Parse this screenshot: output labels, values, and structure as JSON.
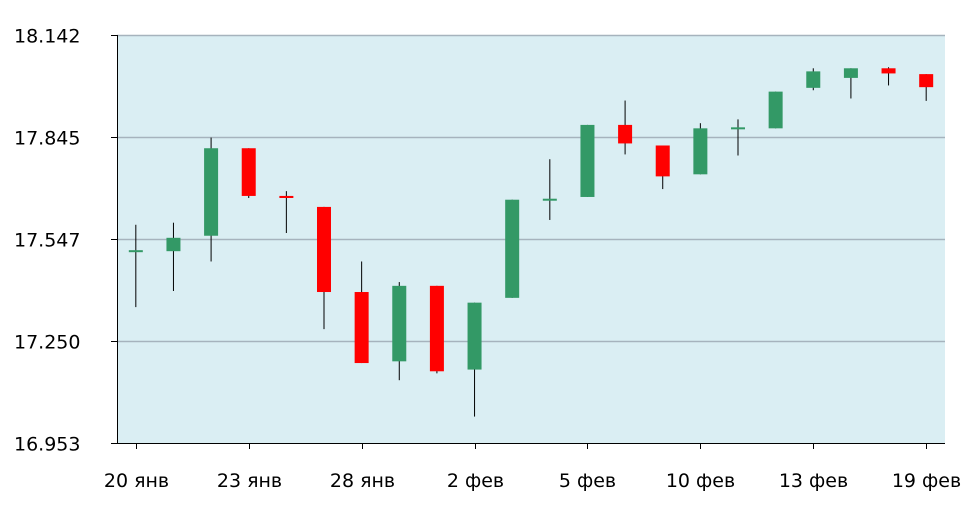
{
  "colors": {
    "plot_bg": "#daeef3",
    "grid": "#a6b3bd",
    "axis": "#000000",
    "up": "#339966",
    "down": "#ff0000",
    "wick": "#000000"
  },
  "chart_data": {
    "type": "candlestick",
    "title": "",
    "xlabel": "",
    "ylabel": "",
    "ylim": [
      16.953,
      18.142
    ],
    "y_ticks": [
      "18.142",
      "17.845",
      "17.547",
      "17.250",
      "16.953"
    ],
    "x_ticks": [
      {
        "index": 0,
        "label": "20 янв"
      },
      {
        "index": 3,
        "label": "23 янв"
      },
      {
        "index": 6,
        "label": "28 янв"
      },
      {
        "index": 9,
        "label": "2 фев"
      },
      {
        "index": 12,
        "label": "5 фев"
      },
      {
        "index": 15,
        "label": "10 фев"
      },
      {
        "index": 18,
        "label": "13 фев"
      },
      {
        "index": 21,
        "label": "19 фев"
      }
    ],
    "grid": true,
    "candles": [
      {
        "open": 17.512,
        "close": 17.512,
        "high": 17.589,
        "low": 17.349
      },
      {
        "open": 17.512,
        "close": 17.551,
        "high": 17.595,
        "low": 17.396
      },
      {
        "open": 17.557,
        "close": 17.812,
        "high": 17.843,
        "low": 17.482
      },
      {
        "open": 17.812,
        "close": 17.673,
        "high": 17.812,
        "low": 17.667
      },
      {
        "open": 17.673,
        "close": 17.667,
        "high": 17.687,
        "low": 17.565
      },
      {
        "open": 17.641,
        "close": 17.393,
        "high": 17.641,
        "low": 17.285
      },
      {
        "open": 17.393,
        "close": 17.186,
        "high": 17.482,
        "low": 17.186
      },
      {
        "open": 17.191,
        "close": 17.411,
        "high": 17.422,
        "low": 17.136
      },
      {
        "open": 17.411,
        "close": 17.162,
        "high": 17.411,
        "low": 17.156
      },
      {
        "open": 17.167,
        "close": 17.362,
        "high": 17.362,
        "low": 17.03
      },
      {
        "open": 17.376,
        "close": 17.662,
        "high": 17.662,
        "low": 17.376
      },
      {
        "open": 17.662,
        "close": 17.662,
        "high": 17.78,
        "low": 17.603
      },
      {
        "open": 17.67,
        "close": 17.88,
        "high": 17.88,
        "low": 17.67
      },
      {
        "open": 17.88,
        "close": 17.826,
        "high": 17.951,
        "low": 17.794
      },
      {
        "open": 17.82,
        "close": 17.73,
        "high": 17.82,
        "low": 17.693
      },
      {
        "open": 17.736,
        "close": 17.87,
        "high": 17.885,
        "low": 17.736
      },
      {
        "open": 17.87,
        "close": 17.87,
        "high": 17.896,
        "low": 17.791
      },
      {
        "open": 17.87,
        "close": 17.977,
        "high": 17.977,
        "low": 17.87
      },
      {
        "open": 17.988,
        "close": 18.036,
        "high": 18.045,
        "low": 17.981
      },
      {
        "open": 18.017,
        "close": 18.045,
        "high": 18.045,
        "low": 17.957
      },
      {
        "open": 18.045,
        "close": 18.03,
        "high": 18.048,
        "low": 17.995
      },
      {
        "open": 18.028,
        "close": 17.99,
        "high": 18.028,
        "low": 17.95
      }
    ]
  }
}
